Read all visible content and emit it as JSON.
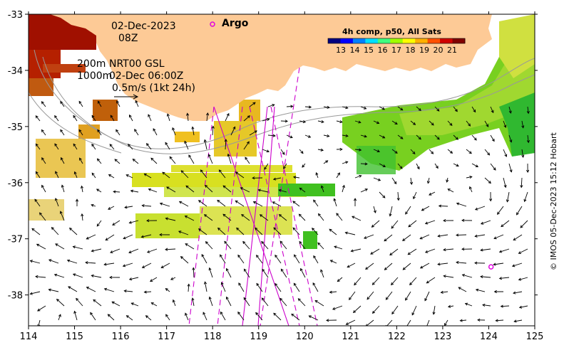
{
  "header": {
    "date": "02-Dec-2023",
    "hour": "08Z",
    "depth_label_1": "200m",
    "depth_label_2": "1000m",
    "product_line_1": "NRT00 GSL",
    "product_line_2": "02-Dec 06:00Z",
    "scale_label": "0.5m/s (1kt 24h)"
  },
  "legend": {
    "argo_label": "Argo",
    "colorbar_title": "4h comp, p50, All Sats",
    "colorbar_ticks": [
      "13",
      "14",
      "15",
      "16",
      "17",
      "18",
      "19",
      "20",
      "21"
    ],
    "colormap": [
      "#00007f",
      "#0000ff",
      "#0080ff",
      "#00e0ff",
      "#40ff80",
      "#a0ff00",
      "#ffff00",
      "#ffb000",
      "#ff5000",
      "#d00000",
      "#800000"
    ]
  },
  "axes": {
    "x_ticks": [
      "114",
      "115",
      "116",
      "117",
      "118",
      "119",
      "120",
      "121",
      "122",
      "123",
      "124",
      "125"
    ],
    "y_ticks": [
      "-33",
      "-34",
      "-35",
      "-36",
      "-37",
      "-38"
    ],
    "x_range": [
      114,
      125
    ],
    "y_range": [
      -38.55,
      -33
    ]
  },
  "colors": {
    "land": "#fdca96",
    "argo": "#e000e0",
    "track": "#cc00cc"
  },
  "argo_float": {
    "lon": 124.05,
    "lat": -37.5
  },
  "credit": "© IMOS 05-Dec-2023 15:12 Hobart"
}
